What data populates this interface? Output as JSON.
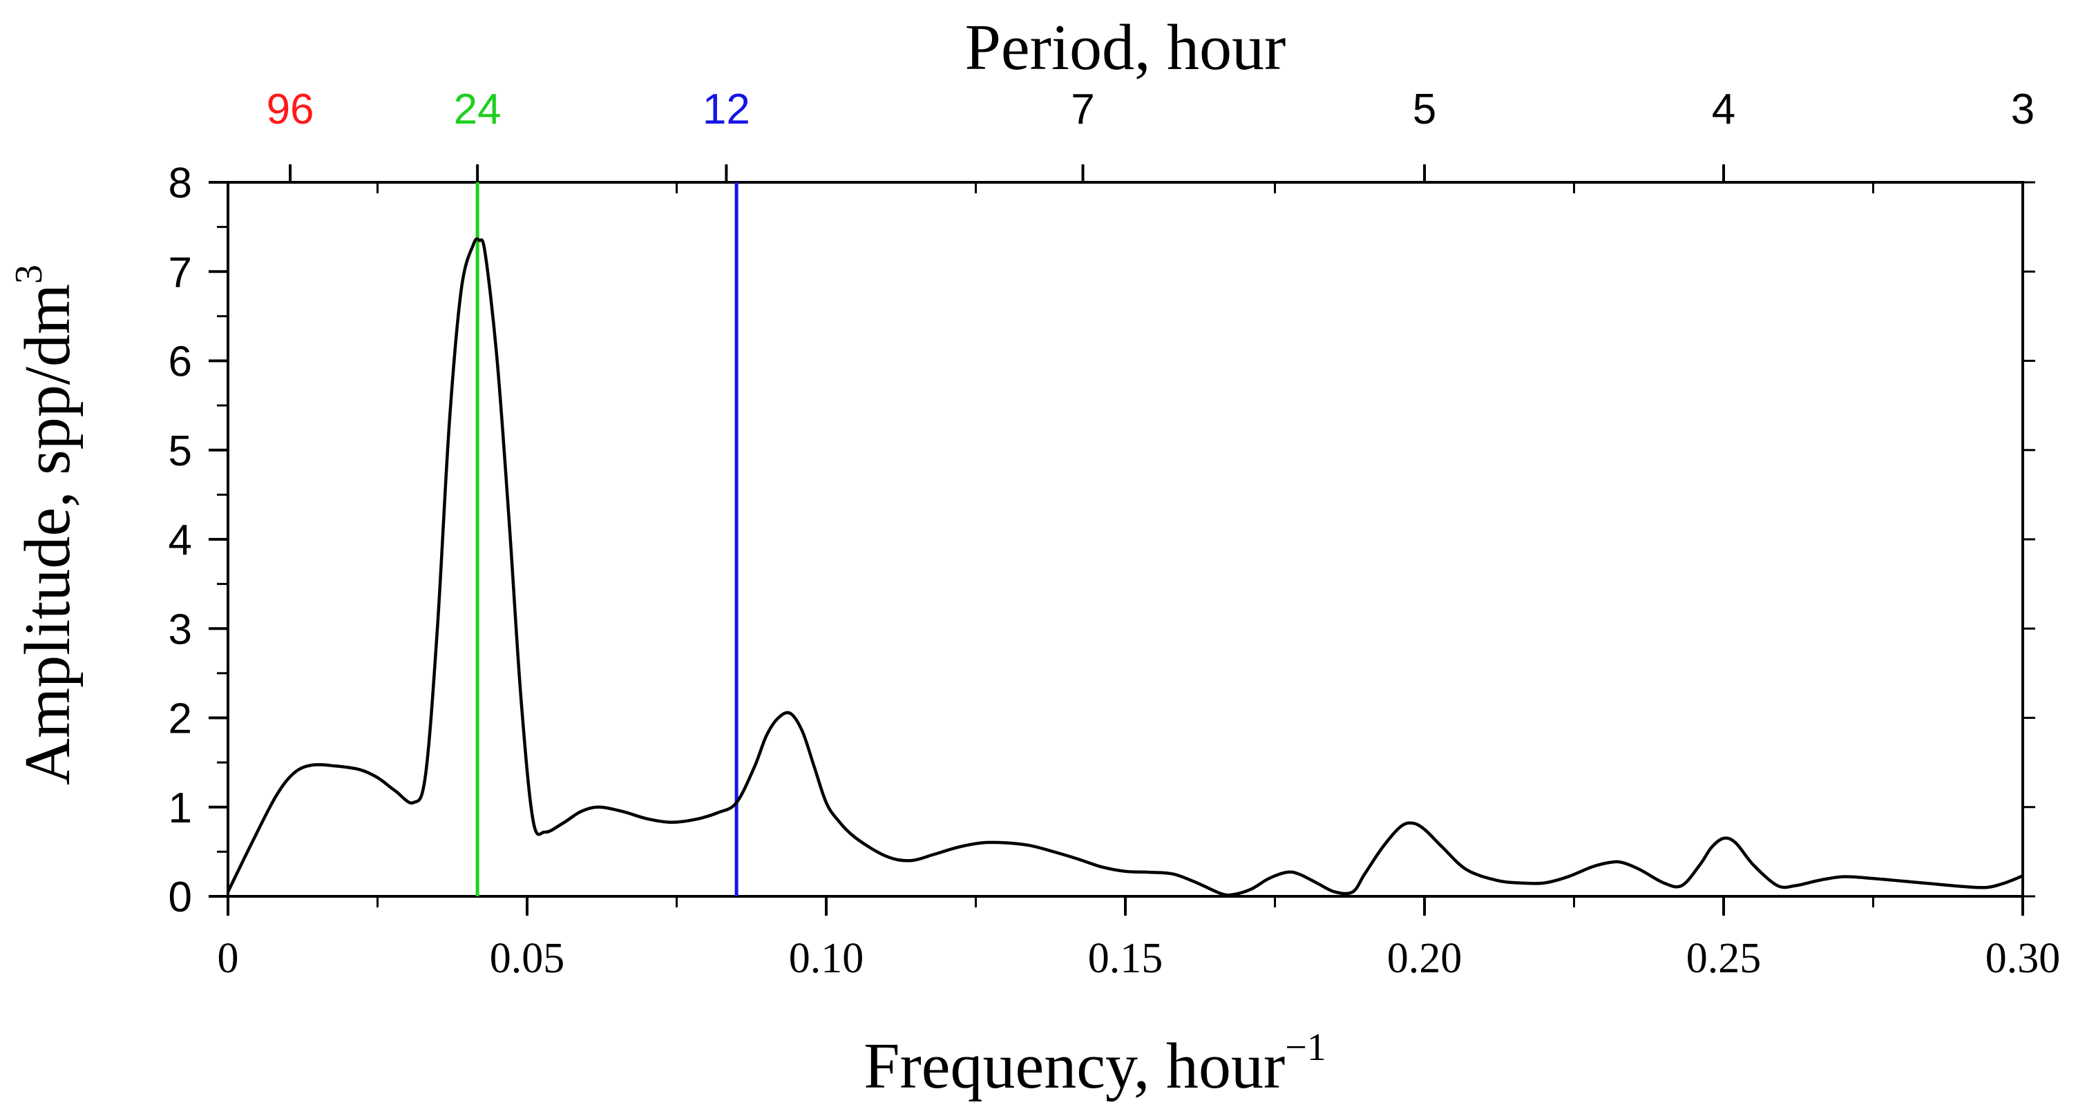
{
  "chart_data": {
    "type": "line",
    "xlabel_main": "Frequency, hour",
    "xlabel_sup": "−1",
    "ylabel_main": "Amplitude, spp/dm",
    "ylabel_sup": "3",
    "top_axis_title": "Period, hour",
    "xlim": [
      0,
      0.3
    ],
    "ylim": [
      0,
      8
    ],
    "x_ticks": [
      {
        "value": 0,
        "label": "0"
      },
      {
        "value": 0.05,
        "label": "0.05"
      },
      {
        "value": 0.1,
        "label": "0.10"
      },
      {
        "value": 0.15,
        "label": "0.15"
      },
      {
        "value": 0.2,
        "label": "0.20"
      },
      {
        "value": 0.25,
        "label": "0.25"
      },
      {
        "value": 0.3,
        "label": "0.30"
      }
    ],
    "y_ticks": [
      {
        "value": 0,
        "label": "0"
      },
      {
        "value": 1,
        "label": "1"
      },
      {
        "value": 2,
        "label": "2"
      },
      {
        "value": 3,
        "label": "3"
      },
      {
        "value": 4,
        "label": "4"
      },
      {
        "value": 5,
        "label": "5"
      },
      {
        "value": 6,
        "label": "6"
      },
      {
        "value": 7,
        "label": "7"
      },
      {
        "value": 8,
        "label": "8"
      }
    ],
    "top_ticks": [
      {
        "label": "96",
        "frequency": 0.0104,
        "color": "#ff1a1a"
      },
      {
        "label": "24",
        "frequency": 0.0417,
        "color": "#1ecf1e"
      },
      {
        "label": "12",
        "frequency": 0.0833,
        "color": "#1515e6"
      },
      {
        "label": "7",
        "frequency": 0.1429,
        "color": "#000000"
      },
      {
        "label": "5",
        "frequency": 0.2,
        "color": "#000000"
      },
      {
        "label": "4",
        "frequency": 0.25,
        "color": "#000000"
      },
      {
        "label": "3",
        "frequency": 0.3333,
        "color": "#000000"
      }
    ],
    "reference_lines": [
      {
        "frequency": 0.0417,
        "color": "#1ecf1e"
      },
      {
        "frequency": 0.085,
        "color": "#1515e6"
      }
    ],
    "series": [
      {
        "color": "#000000",
        "x": [
          0,
          0.004,
          0.008,
          0.011,
          0.014,
          0.018,
          0.022,
          0.025,
          0.028,
          0.031,
          0.033,
          0.035,
          0.037,
          0.039,
          0.041,
          0.042,
          0.043,
          0.045,
          0.047,
          0.049,
          0.051,
          0.053,
          0.056,
          0.059,
          0.062,
          0.066,
          0.07,
          0.074,
          0.078,
          0.082,
          0.085,
          0.088,
          0.09,
          0.092,
          0.094,
          0.096,
          0.098,
          0.1,
          0.102,
          0.105,
          0.11,
          0.114,
          0.118,
          0.122,
          0.126,
          0.13,
          0.134,
          0.138,
          0.142,
          0.146,
          0.15,
          0.154,
          0.158,
          0.162,
          0.166,
          0.168,
          0.171,
          0.174,
          0.177,
          0.179,
          0.182,
          0.185,
          0.188,
          0.19,
          0.193,
          0.196,
          0.198,
          0.2,
          0.203,
          0.207,
          0.212,
          0.216,
          0.22,
          0.224,
          0.228,
          0.231,
          0.233,
          0.236,
          0.24,
          0.243,
          0.246,
          0.248,
          0.25,
          0.252,
          0.255,
          0.259,
          0.262,
          0.266,
          0.27,
          0.275,
          0.28,
          0.285,
          0.29,
          0.294,
          0.297,
          0.3
        ],
        "y": [
          0.05,
          0.6,
          1.12,
          1.38,
          1.47,
          1.46,
          1.42,
          1.33,
          1.18,
          1.05,
          1.35,
          3.0,
          5.3,
          6.8,
          7.3,
          7.35,
          7.2,
          6.0,
          4.2,
          2.2,
          0.85,
          0.72,
          0.82,
          0.95,
          1.0,
          0.95,
          0.87,
          0.83,
          0.86,
          0.94,
          1.05,
          1.45,
          1.8,
          2.0,
          2.05,
          1.85,
          1.45,
          1.05,
          0.85,
          0.65,
          0.45,
          0.4,
          0.47,
          0.55,
          0.6,
          0.6,
          0.57,
          0.5,
          0.42,
          0.33,
          0.28,
          0.27,
          0.25,
          0.15,
          0.03,
          0.02,
          0.08,
          0.2,
          0.27,
          0.25,
          0.15,
          0.05,
          0.05,
          0.25,
          0.55,
          0.78,
          0.82,
          0.75,
          0.55,
          0.3,
          0.18,
          0.15,
          0.15,
          0.22,
          0.33,
          0.38,
          0.38,
          0.3,
          0.15,
          0.12,
          0.35,
          0.55,
          0.65,
          0.6,
          0.35,
          0.12,
          0.12,
          0.18,
          0.22,
          0.2,
          0.17,
          0.14,
          0.11,
          0.1,
          0.15,
          0.23
        ]
      }
    ]
  }
}
